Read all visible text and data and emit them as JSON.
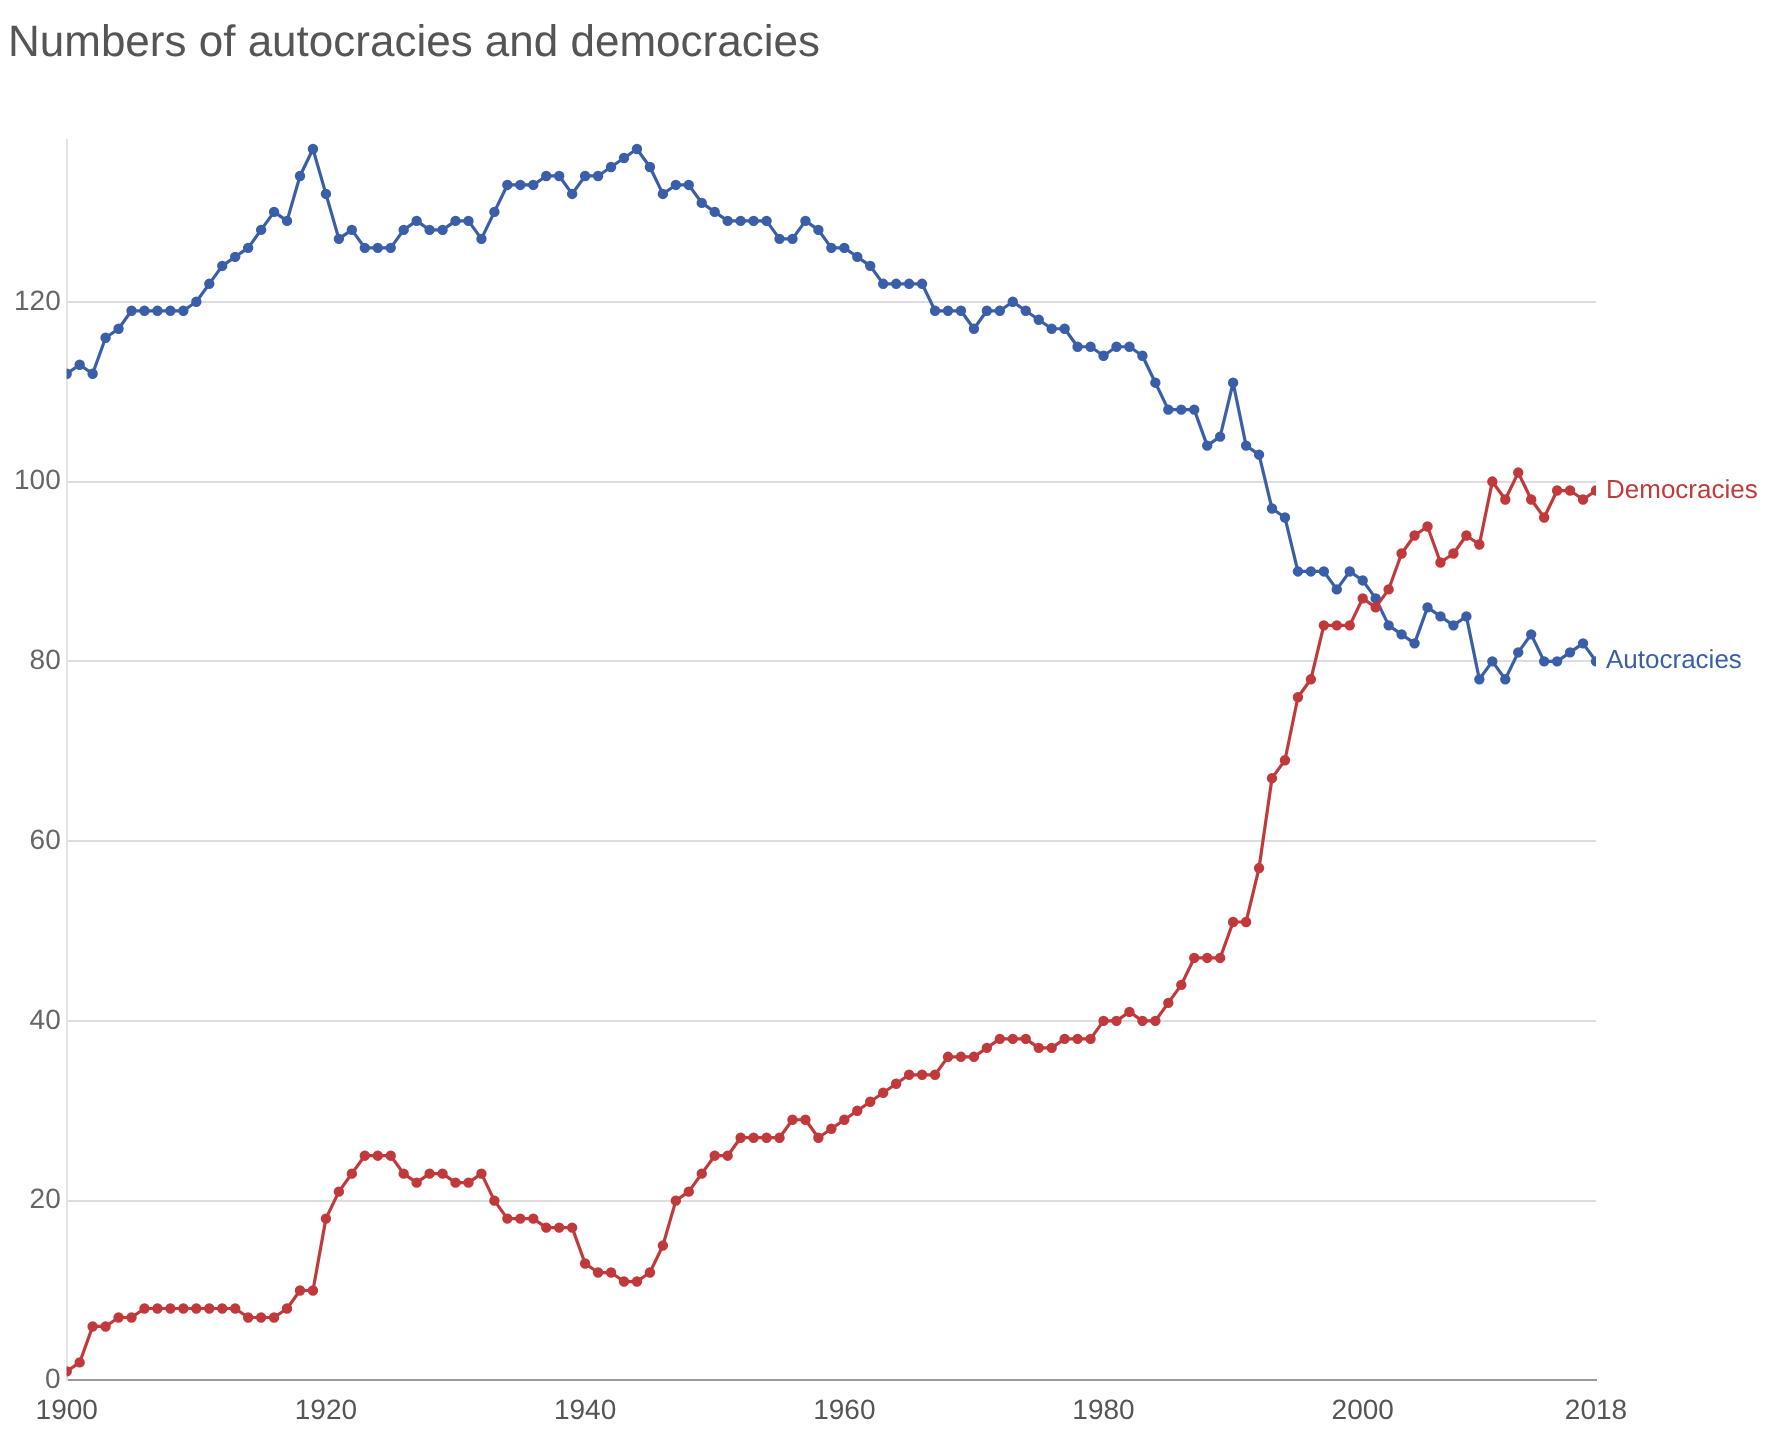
{
  "chart_data": {
    "type": "line",
    "title": "Numbers of autocracies and democracies",
    "x": [
      1900,
      1901,
      1902,
      1903,
      1904,
      1905,
      1906,
      1907,
      1908,
      1909,
      1910,
      1911,
      1912,
      1913,
      1914,
      1915,
      1916,
      1917,
      1918,
      1919,
      1920,
      1921,
      1922,
      1923,
      1924,
      1925,
      1926,
      1927,
      1928,
      1929,
      1930,
      1931,
      1932,
      1933,
      1934,
      1935,
      1936,
      1937,
      1938,
      1939,
      1940,
      1941,
      1942,
      1943,
      1944,
      1945,
      1946,
      1947,
      1948,
      1949,
      1950,
      1951,
      1952,
      1953,
      1954,
      1955,
      1956,
      1957,
      1958,
      1959,
      1960,
      1961,
      1962,
      1963,
      1964,
      1965,
      1966,
      1967,
      1968,
      1969,
      1970,
      1971,
      1972,
      1973,
      1974,
      1975,
      1976,
      1977,
      1978,
      1979,
      1980,
      1981,
      1982,
      1983,
      1984,
      1985,
      1986,
      1987,
      1988,
      1989,
      1990,
      1991,
      1992,
      1993,
      1994,
      1995,
      1996,
      1997,
      1998,
      1999,
      2000,
      2001,
      2002,
      2003,
      2004,
      2005,
      2006,
      2007,
      2008,
      2009,
      2010,
      2011,
      2012,
      2013,
      2014,
      2015,
      2016,
      2017,
      2018
    ],
    "series": [
      {
        "name": "Democracies",
        "color": "#c0393b",
        "values": [
          1,
          2,
          6,
          6,
          7,
          7,
          8,
          8,
          8,
          8,
          8,
          8,
          8,
          8,
          7,
          7,
          7,
          8,
          10,
          10,
          18,
          21,
          23,
          25,
          25,
          25,
          23,
          22,
          23,
          23,
          22,
          22,
          23,
          20,
          18,
          18,
          18,
          17,
          17,
          17,
          13,
          12,
          12,
          11,
          11,
          12,
          15,
          20,
          21,
          23,
          25,
          25,
          27,
          27,
          27,
          27,
          29,
          29,
          27,
          28,
          29,
          30,
          31,
          32,
          33,
          34,
          34,
          34,
          36,
          36,
          36,
          37,
          38,
          38,
          38,
          37,
          37,
          38,
          38,
          38,
          40,
          40,
          41,
          40,
          40,
          42,
          44,
          47,
          47,
          47,
          51,
          51,
          57,
          67,
          69,
          76,
          78,
          84,
          84,
          84,
          87,
          86,
          88,
          92,
          94,
          95,
          91,
          92,
          94,
          93,
          100,
          98,
          101,
          98,
          96,
          99,
          99,
          98,
          99
        ]
      },
      {
        "name": "Autocracies",
        "color": "#3a5fa8",
        "values": [
          112,
          113,
          112,
          116,
          117,
          119,
          119,
          119,
          119,
          119,
          120,
          122,
          124,
          125,
          126,
          128,
          130,
          129,
          134,
          137,
          132,
          127,
          128,
          126,
          126,
          126,
          128,
          129,
          128,
          128,
          129,
          129,
          127,
          130,
          133,
          133,
          133,
          134,
          134,
          132,
          134,
          134,
          135,
          136,
          137,
          135,
          132,
          133,
          133,
          131,
          130,
          129,
          129,
          129,
          129,
          127,
          127,
          129,
          128,
          126,
          126,
          125,
          124,
          122,
          122,
          122,
          122,
          119,
          119,
          119,
          117,
          119,
          119,
          120,
          119,
          118,
          117,
          117,
          115,
          115,
          114,
          115,
          115,
          114,
          111,
          108,
          108,
          108,
          104,
          105,
          111,
          104,
          103,
          97,
          96,
          90,
          90,
          90,
          88,
          90,
          89,
          87,
          84,
          83,
          82,
          86,
          85,
          84,
          85,
          78,
          80,
          78,
          81,
          83,
          80,
          80,
          81,
          82,
          80
        ]
      }
    ],
    "xlim": [
      1900,
      2018
    ],
    "xticks": [
      1900,
      1920,
      1940,
      1960,
      1980,
      2000,
      2018
    ],
    "ylim": [
      0,
      138
    ],
    "yticks": [
      0,
      20,
      40,
      60,
      80,
      100,
      120
    ],
    "grid": "y",
    "legend": false,
    "marker": "circle",
    "line_style": "solid"
  }
}
